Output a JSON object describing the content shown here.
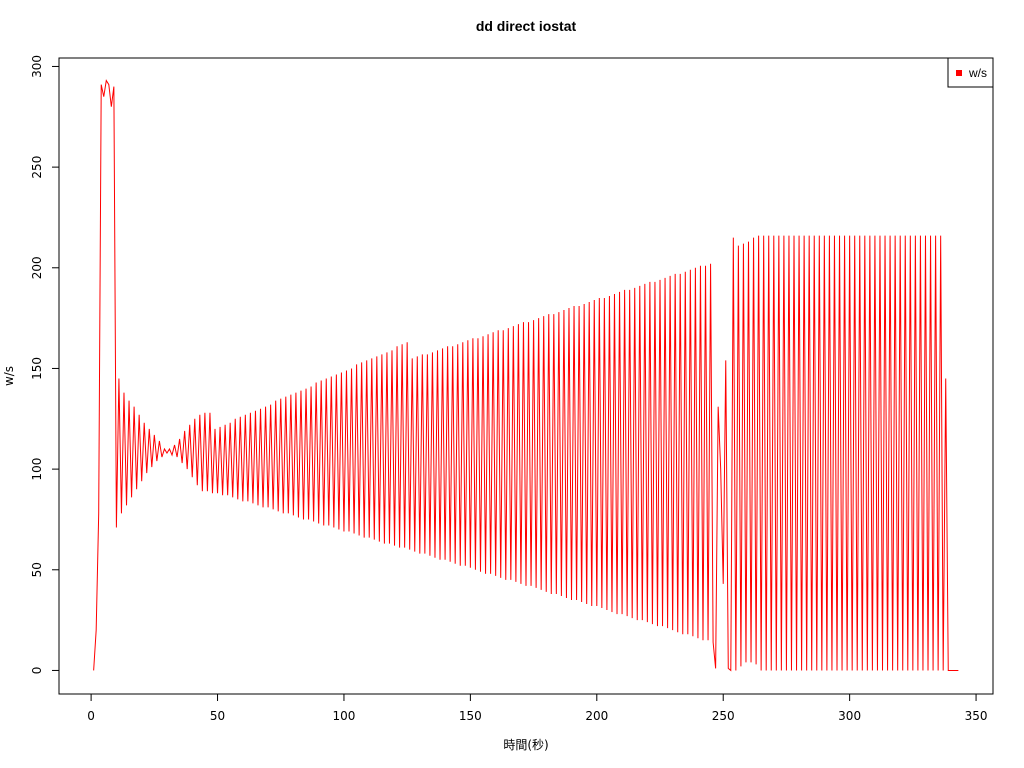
{
  "chart_data": {
    "type": "line",
    "title": "dd direct iostat",
    "x_label": "時間(秒)",
    "y_label": "w/s",
    "xlim": [
      -12.7,
      356.7
    ],
    "ylim": [
      -11.7,
      304.2
    ],
    "xticks": [
      0,
      50,
      100,
      150,
      200,
      250,
      300,
      350
    ],
    "yticks": [
      0,
      50,
      100,
      150,
      200,
      250,
      300
    ],
    "legend": "top-right",
    "x": [
      1,
      2,
      3,
      4,
      5,
      6,
      7,
      8,
      9,
      10,
      11,
      12,
      13,
      14,
      15,
      16,
      17,
      18,
      19,
      20,
      21,
      22,
      23,
      24,
      25,
      26,
      27,
      28,
      29,
      30,
      31,
      32,
      33,
      34,
      35,
      36,
      37,
      38,
      39,
      40,
      41,
      42,
      43,
      44,
      45,
      46,
      47,
      48,
      49,
      50,
      51,
      52,
      53,
      54,
      55,
      56,
      57,
      58,
      59,
      60,
      61,
      62,
      63,
      64,
      65,
      66,
      67,
      68,
      69,
      70,
      71,
      72,
      73,
      74,
      75,
      76,
      77,
      78,
      79,
      80,
      81,
      82,
      83,
      84,
      85,
      86,
      87,
      88,
      89,
      90,
      91,
      92,
      93,
      94,
      95,
      96,
      97,
      98,
      99,
      100,
      101,
      102,
      103,
      104,
      105,
      106,
      107,
      108,
      109,
      110,
      111,
      112,
      113,
      114,
      115,
      116,
      117,
      118,
      119,
      120,
      121,
      122,
      123,
      124,
      125,
      126,
      127,
      128,
      129,
      130,
      131,
      132,
      133,
      134,
      135,
      136,
      137,
      138,
      139,
      140,
      141,
      142,
      143,
      144,
      145,
      146,
      147,
      148,
      149,
      150,
      151,
      152,
      153,
      154,
      155,
      156,
      157,
      158,
      159,
      160,
      161,
      162,
      163,
      164,
      165,
      166,
      167,
      168,
      169,
      170,
      171,
      172,
      173,
      174,
      175,
      176,
      177,
      178,
      179,
      180,
      181,
      182,
      183,
      184,
      185,
      186,
      187,
      188,
      189,
      190,
      191,
      192,
      193,
      194,
      195,
      196,
      197,
      198,
      199,
      200,
      201,
      202,
      203,
      204,
      205,
      206,
      207,
      208,
      209,
      210,
      211,
      212,
      213,
      214,
      215,
      216,
      217,
      218,
      219,
      220,
      221,
      222,
      223,
      224,
      225,
      226,
      227,
      228,
      229,
      230,
      231,
      232,
      233,
      234,
      235,
      236,
      237,
      238,
      239,
      240,
      241,
      242,
      243,
      244,
      245,
      246,
      247,
      248,
      249,
      250,
      251,
      252,
      253,
      254,
      255,
      256,
      257,
      258,
      259,
      260,
      261,
      262,
      263,
      264,
      265,
      266,
      267,
      268,
      269,
      270,
      271,
      272,
      273,
      274,
      275,
      276,
      277,
      278,
      279,
      280,
      281,
      282,
      283,
      284,
      285,
      286,
      287,
      288,
      289,
      290,
      291,
      292,
      293,
      294,
      295,
      296,
      297,
      298,
      299,
      300,
      301,
      302,
      303,
      304,
      305,
      306,
      307,
      308,
      309,
      310,
      311,
      312,
      313,
      314,
      315,
      316,
      317,
      318,
      319,
      320,
      321,
      322,
      323,
      324,
      325,
      326,
      327,
      328,
      329,
      330,
      331,
      332,
      333,
      334,
      335,
      336,
      337,
      338,
      339,
      340,
      341,
      342,
      343
    ],
    "series": [
      {
        "name": "w/s",
        "color": "#ff0000",
        "values": [
          0,
          20,
          78,
          291,
          285,
          293,
          291,
          280,
          290,
          71,
          145,
          78,
          138,
          82,
          134,
          86,
          131,
          90,
          127,
          94,
          123,
          98,
          120,
          101,
          117,
          104,
          114,
          106,
          110,
          108,
          110,
          107,
          112,
          106,
          115,
          103,
          119,
          100,
          122,
          96,
          125,
          92,
          127,
          89,
          128,
          89,
          128,
          88,
          120,
          88,
          121,
          87,
          122,
          87,
          123,
          86,
          125,
          85,
          126,
          84,
          127,
          84,
          128,
          83,
          129,
          82,
          130,
          81,
          131,
          81,
          132,
          80,
          134,
          79,
          135,
          78,
          136,
          78,
          137,
          77,
          138,
          76,
          139,
          75,
          140,
          75,
          141,
          74,
          143,
          73,
          144,
          72,
          145,
          72,
          146,
          71,
          147,
          70,
          148,
          69,
          149,
          69,
          150,
          68,
          152,
          67,
          153,
          66,
          154,
          66,
          155,
          65,
          156,
          64,
          157,
          63,
          158,
          63,
          159,
          62,
          161,
          61,
          162,
          61,
          163,
          60,
          155,
          59,
          156,
          58,
          157,
          58,
          157,
          57,
          158,
          56,
          159,
          55,
          160,
          55,
          161,
          54,
          161,
          53,
          162,
          52,
          163,
          52,
          164,
          51,
          165,
          50,
          165,
          49,
          166,
          48,
          167,
          48,
          168,
          47,
          169,
          46,
          169,
          45,
          170,
          45,
          171,
          44,
          172,
          43,
          173,
          42,
          173,
          42,
          174,
          41,
          175,
          40,
          176,
          39,
          177,
          38,
          177,
          38,
          178,
          37,
          179,
          36,
          180,
          35,
          181,
          35,
          181,
          34,
          182,
          33,
          183,
          32,
          184,
          32,
          185,
          31,
          185,
          30,
          186,
          29,
          187,
          28,
          188,
          28,
          189,
          27,
          189,
          26,
          190,
          25,
          191,
          25,
          192,
          24,
          193,
          23,
          193,
          22,
          194,
          22,
          195,
          21,
          196,
          20,
          197,
          19,
          197,
          18,
          198,
          18,
          199,
          17,
          200,
          16,
          201,
          15,
          201,
          15,
          202,
          14,
          1,
          131,
          100,
          43,
          154,
          1,
          0,
          215,
          0,
          211,
          2,
          212,
          4,
          213,
          4,
          215,
          3,
          216,
          0,
          216,
          0,
          216,
          0,
          216,
          0,
          216,
          0,
          216,
          0,
          216,
          0,
          216,
          0,
          216,
          0,
          216,
          0,
          216,
          0,
          216,
          0,
          216,
          0,
          216,
          0,
          216,
          0,
          216,
          0,
          216,
          0,
          216,
          0,
          216,
          0,
          216,
          0,
          216,
          0,
          216,
          0,
          216,
          0,
          216,
          0,
          216,
          0,
          216,
          0,
          216,
          0,
          216,
          0,
          216,
          0,
          216,
          0,
          216,
          0,
          216,
          0,
          216,
          0,
          216,
          0,
          216,
          0,
          216,
          0,
          216,
          0,
          145,
          0,
          0,
          0,
          0,
          0
        ]
      }
    ]
  }
}
